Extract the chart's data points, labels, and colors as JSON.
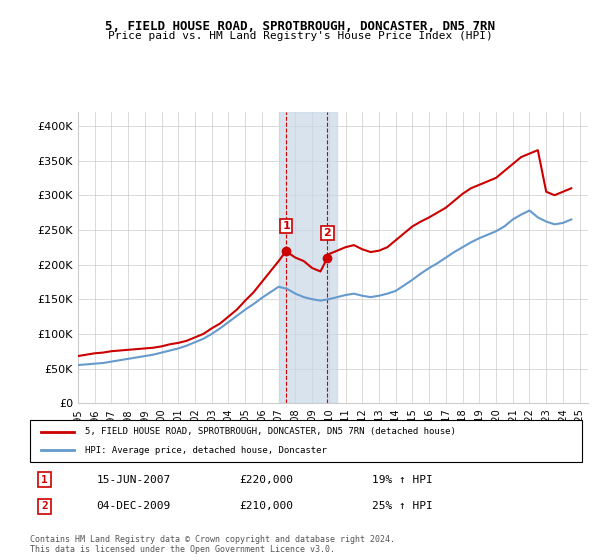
{
  "title1": "5, FIELD HOUSE ROAD, SPROTBROUGH, DONCASTER, DN5 7RN",
  "title2": "Price paid vs. HM Land Registry's House Price Index (HPI)",
  "legend_red": "5, FIELD HOUSE ROAD, SPROTBROUGH, DONCASTER, DN5 7RN (detached house)",
  "legend_blue": "HPI: Average price, detached house, Doncaster",
  "annotation1_label": "1",
  "annotation1_date": "15-JUN-2007",
  "annotation1_price": "£220,000",
  "annotation1_hpi": "19% ↑ HPI",
  "annotation2_label": "2",
  "annotation2_date": "04-DEC-2009",
  "annotation2_price": "£210,000",
  "annotation2_hpi": "25% ↑ HPI",
  "footnote": "Contains HM Land Registry data © Crown copyright and database right 2024.\nThis data is licensed under the Open Government Licence v3.0.",
  "sale1_x": 2007.46,
  "sale1_y": 220000,
  "sale2_x": 2009.92,
  "sale2_y": 210000,
  "shade_x1": 2007.0,
  "shade_x2": 2010.5,
  "ylim_min": 0,
  "ylim_max": 420000,
  "xlim_min": 1995,
  "xlim_max": 2025.5,
  "red_color": "#cc0000",
  "blue_color": "#6699cc",
  "shade_color": "#c8d8e8",
  "grid_color": "#cccccc",
  "background_color": "#ffffff",
  "yticks": [
    0,
    50000,
    100000,
    150000,
    200000,
    250000,
    300000,
    350000,
    400000
  ],
  "ytick_labels": [
    "£0",
    "£50K",
    "£100K",
    "£150K",
    "£200K",
    "£250K",
    "£300K",
    "£350K",
    "£400K"
  ],
  "xticks": [
    1995,
    1996,
    1997,
    1998,
    1999,
    2000,
    2001,
    2002,
    2003,
    2004,
    2005,
    2006,
    2007,
    2008,
    2009,
    2010,
    2011,
    2012,
    2013,
    2014,
    2015,
    2016,
    2017,
    2018,
    2019,
    2020,
    2021,
    2022,
    2023,
    2024,
    2025
  ],
  "red_x": [
    1995,
    1995.5,
    1996,
    1996.5,
    1997,
    1997.5,
    1998,
    1998.5,
    1999,
    1999.5,
    2000,
    2000.5,
    2001,
    2001.5,
    2002,
    2002.5,
    2003,
    2003.5,
    2004,
    2004.5,
    2005,
    2005.5,
    2006,
    2006.5,
    2007.0,
    2007.46,
    2007.5,
    2008.0,
    2008.5,
    2009.0,
    2009.5,
    2009.92,
    2010.0,
    2010.5,
    2011.0,
    2011.5,
    2012.0,
    2012.5,
    2013.0,
    2013.5,
    2014.0,
    2014.5,
    2015.0,
    2015.5,
    2016.0,
    2016.5,
    2017.0,
    2017.5,
    2018.0,
    2018.5,
    2019.0,
    2019.5,
    2020.0,
    2020.5,
    2021.0,
    2021.5,
    2022.0,
    2022.5,
    2023.0,
    2023.5,
    2024.0,
    2024.5
  ],
  "red_y": [
    68000,
    70000,
    72000,
    73000,
    75000,
    76000,
    77000,
    78000,
    79000,
    80000,
    82000,
    85000,
    87000,
    90000,
    95000,
    100000,
    108000,
    115000,
    125000,
    135000,
    148000,
    160000,
    175000,
    190000,
    205000,
    220000,
    218000,
    210000,
    205000,
    195000,
    190000,
    210000,
    215000,
    220000,
    225000,
    228000,
    222000,
    218000,
    220000,
    225000,
    235000,
    245000,
    255000,
    262000,
    268000,
    275000,
    282000,
    292000,
    302000,
    310000,
    315000,
    320000,
    325000,
    335000,
    345000,
    355000,
    360000,
    365000,
    305000,
    300000,
    305000,
    310000
  ],
  "blue_x": [
    1995,
    1995.5,
    1996,
    1996.5,
    1997,
    1997.5,
    1998,
    1998.5,
    1999,
    1999.5,
    2000,
    2000.5,
    2001,
    2001.5,
    2002,
    2002.5,
    2003,
    2003.5,
    2004,
    2004.5,
    2005,
    2005.5,
    2006,
    2006.5,
    2007.0,
    2007.5,
    2008.0,
    2008.5,
    2009.0,
    2009.5,
    2010.0,
    2010.5,
    2011.0,
    2011.5,
    2012.0,
    2012.5,
    2013.0,
    2013.5,
    2014.0,
    2014.5,
    2015.0,
    2015.5,
    2016.0,
    2016.5,
    2017.0,
    2017.5,
    2018.0,
    2018.5,
    2019.0,
    2019.5,
    2020.0,
    2020.5,
    2021.0,
    2021.5,
    2022.0,
    2022.5,
    2023.0,
    2023.5,
    2024.0,
    2024.5
  ],
  "blue_y": [
    55000,
    56000,
    57000,
    58000,
    60000,
    62000,
    64000,
    66000,
    68000,
    70000,
    73000,
    76000,
    79000,
    83000,
    88000,
    93000,
    100000,
    108000,
    117000,
    126000,
    135000,
    143000,
    152000,
    160000,
    168000,
    165000,
    158000,
    153000,
    150000,
    148000,
    150000,
    153000,
    156000,
    158000,
    155000,
    153000,
    155000,
    158000,
    162000,
    170000,
    178000,
    187000,
    195000,
    202000,
    210000,
    218000,
    225000,
    232000,
    238000,
    243000,
    248000,
    255000,
    265000,
    272000,
    278000,
    268000,
    262000,
    258000,
    260000,
    265000
  ]
}
